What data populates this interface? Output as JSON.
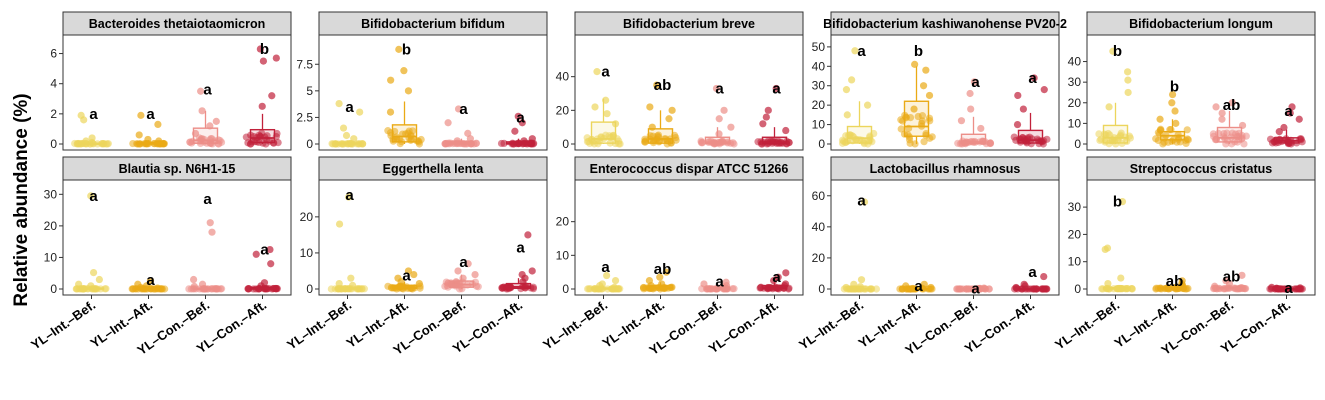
{
  "y_axis_label": "Relative abundance (%)",
  "groups": [
    "YL–Int.–Bef.",
    "YL–Int.–Aft.",
    "YL–Con.–Bef.",
    "YL–Con.–Aft."
  ],
  "group_colors": [
    "#ecd55c",
    "#eaaa16",
    "#ec8e88",
    "#c1213b"
  ],
  "chart_data": [
    {
      "type": "box-jitter",
      "title": "Bacteroides thetaiotaomicron",
      "ylim": [
        0,
        6.7
      ],
      "yticks": [
        0,
        2,
        4,
        6
      ],
      "letters": [
        "a",
        "a",
        "a",
        "b"
      ],
      "label_y": [
        2.0,
        2.0,
        3.6,
        6.3
      ],
      "box": [
        [
          0,
          0,
          0.02,
          0.05,
          0.1
        ],
        [
          0,
          0,
          0.02,
          0.1,
          0.25
        ],
        [
          0,
          0.05,
          0.25,
          1.05,
          2.2
        ],
        [
          0,
          0.1,
          0.4,
          0.95,
          2.0
        ]
      ],
      "points": [
        [
          1.9,
          1.6,
          0.4,
          0.2,
          0.1
        ],
        [
          1.9,
          1.3,
          0.6,
          0.3,
          0.2
        ],
        [
          3.5,
          2.2,
          1.5,
          1.2,
          0.7
        ],
        [
          6.3,
          5.7,
          5.5,
          3.2,
          2.5
        ]
      ]
    },
    {
      "type": "box-jitter",
      "title": "Bifidobacterium bifidum",
      "ylim": [
        0,
        9.5
      ],
      "yticks": [
        0,
        2.5,
        5.0,
        7.5
      ],
      "letters": [
        "a",
        "b",
        "a",
        "a"
      ],
      "label_y": [
        3.5,
        8.9,
        3.3,
        2.5
      ],
      "box": [
        [
          0,
          0,
          0.02,
          0.1,
          0.3
        ],
        [
          0,
          0.2,
          0.7,
          1.8,
          4.0
        ],
        [
          0,
          0,
          0.05,
          0.2,
          0.5
        ],
        [
          0,
          0,
          0.05,
          0.2,
          0.5
        ]
      ],
      "points": [
        [
          3.8,
          3.0,
          1.5,
          0.8,
          0.5
        ],
        [
          8.9,
          6.9,
          6.0,
          5.0,
          3.0
        ],
        [
          3.3,
          2.0,
          1.0,
          0.5,
          0.3
        ],
        [
          2.6,
          2.0,
          1.2,
          0.5,
          0.3
        ]
      ]
    },
    {
      "type": "box-jitter",
      "title": "Bifidobacterium breve",
      "ylim": [
        0,
        60
      ],
      "yticks": [
        0,
        20,
        40
      ],
      "letters": [
        "a",
        "ab",
        "a",
        "a"
      ],
      "label_y": [
        43,
        35,
        33,
        33
      ],
      "box": [
        [
          0,
          0.5,
          3,
          13,
          27
        ],
        [
          0,
          0.5,
          3,
          9,
          20
        ],
        [
          0,
          0.2,
          1,
          4,
          10
        ],
        [
          0,
          0.2,
          1,
          4,
          10
        ]
      ],
      "points": [
        [
          43,
          26,
          22,
          18,
          12
        ],
        [
          35,
          22,
          20,
          15,
          10
        ],
        [
          33,
          20,
          15,
          10,
          6
        ],
        [
          33,
          20,
          16,
          12,
          8
        ]
      ]
    },
    {
      "type": "box-jitter",
      "title": "Bifidobacterium kashiwanohense PV20-2",
      "ylim": [
        0,
        52
      ],
      "yticks": [
        0,
        10,
        20,
        30,
        40,
        50
      ],
      "letters": [
        "a",
        "b",
        "a",
        "a"
      ],
      "label_y": [
        48,
        48,
        32,
        34
      ],
      "box": [
        [
          0,
          0.5,
          3,
          9,
          22
        ],
        [
          0,
          4,
          9,
          22,
          40
        ],
        [
          0,
          0.3,
          1,
          5,
          14
        ],
        [
          0,
          0.5,
          2,
          7,
          16
        ]
      ],
      "points": [
        [
          48,
          33,
          28,
          20,
          15
        ],
        [
          41,
          38,
          30,
          25,
          18
        ],
        [
          32,
          26,
          18,
          12,
          8
        ],
        [
          34,
          28,
          25,
          18,
          10
        ]
      ]
    },
    {
      "type": "box-jitter",
      "title": "Bifidobacterium longum",
      "ylim": [
        0,
        49
      ],
      "yticks": [
        0,
        10,
        20,
        30,
        40
      ],
      "letters": [
        "b",
        "b",
        "ab",
        "a"
      ],
      "label_y": [
        45,
        28,
        19,
        16
      ],
      "box": [
        [
          0,
          0.5,
          3,
          9,
          20
        ],
        [
          0,
          2,
          4,
          6,
          12
        ],
        [
          0,
          1,
          3,
          8,
          16
        ],
        [
          0,
          0.5,
          1.5,
          3,
          7
        ]
      ],
      "points": [
        [
          45,
          35,
          31,
          25,
          18
        ],
        [
          24,
          20,
          16,
          12,
          10
        ],
        [
          20,
          18,
          15,
          12,
          9
        ],
        [
          18,
          15,
          12,
          8,
          6
        ]
      ]
    },
    {
      "type": "box-jitter",
      "title": "Blautia sp. N6H1-15",
      "ylim": [
        0,
        32
      ],
      "yticks": [
        0,
        10,
        20,
        30
      ],
      "letters": [
        "a",
        "a",
        "a",
        "a"
      ],
      "label_y": [
        29.5,
        2.8,
        28.5,
        12.5
      ],
      "box": [
        [
          0,
          0,
          0.05,
          0.3,
          0.8
        ],
        [
          0,
          0,
          0.05,
          0.2,
          0.5
        ],
        [
          0,
          0,
          0.05,
          0.2,
          0.5
        ],
        [
          0,
          0,
          0.1,
          0.5,
          1.2
        ]
      ],
      "points": [
        [
          29.5,
          5.2,
          3.0,
          1.5,
          1.0
        ],
        [
          2.6,
          1.5,
          1.0,
          0.5,
          0.3
        ],
        [
          21,
          18,
          3,
          1.5,
          0.8
        ],
        [
          12.5,
          11,
          8,
          2,
          1
        ]
      ]
    },
    {
      "type": "box-jitter",
      "title": "Eggerthella lenta",
      "ylim": [
        0,
        28
      ],
      "yticks": [
        0,
        10,
        20
      ],
      "letters": [
        "a",
        "a",
        "a",
        "a"
      ],
      "label_y": [
        26,
        3.8,
        7.5,
        11.5
      ],
      "box": [
        [
          0,
          0,
          0.05,
          0.3,
          0.8
        ],
        [
          0,
          0.2,
          0.5,
          1.0,
          2.0
        ],
        [
          0,
          0.5,
          1.2,
          2.2,
          4.0
        ],
        [
          0,
          0.2,
          0.6,
          1.5,
          3.0
        ]
      ],
      "points": [
        [
          25.5,
          18,
          3,
          1.5,
          1
        ],
        [
          5,
          4,
          3,
          2,
          1.5
        ],
        [
          7,
          5,
          4,
          3,
          2
        ],
        [
          15,
          5,
          4,
          3,
          2
        ]
      ]
    },
    {
      "type": "box-jitter",
      "title": "Enterococcus dispar ATCC 51266",
      "ylim": [
        0,
        30
      ],
      "yticks": [
        0,
        10,
        20
      ],
      "letters": [
        "a",
        "ab",
        "a",
        "a"
      ],
      "label_y": [
        6.5,
        6.0,
        2.2,
        3.5
      ],
      "box": [
        [
          0,
          0,
          0.05,
          0.3,
          0.8
        ],
        [
          0,
          0.1,
          0.3,
          1.0,
          2.0
        ],
        [
          0,
          0,
          0.05,
          0.3,
          0.8
        ],
        [
          0,
          0.1,
          0.3,
          1.0,
          2.0
        ]
      ],
      "points": [
        [
          4,
          2.5,
          1.5,
          1,
          0.5
        ],
        [
          5,
          3.5,
          2.5,
          1.5,
          1
        ],
        [
          2,
          1.5,
          1,
          0.5,
          0.3
        ],
        [
          4.8,
          3.5,
          2.5,
          1.5,
          1
        ]
      ]
    },
    {
      "type": "box-jitter",
      "title": "Lactobacillus rhamnosus",
      "ylim": [
        0,
        65
      ],
      "yticks": [
        0,
        20,
        40,
        60
      ],
      "letters": [
        "a",
        "a",
        "a",
        "a"
      ],
      "label_y": [
        57,
        2.0,
        0.3,
        11
      ],
      "box": [
        [
          0,
          0,
          0.02,
          0.1,
          0.3
        ],
        [
          0,
          0,
          0.02,
          0.1,
          0.3
        ],
        [
          0,
          0,
          0.02,
          0.05,
          0.1
        ],
        [
          0,
          0,
          0.02,
          0.1,
          0.3
        ]
      ],
      "points": [
        [
          56,
          6,
          3,
          1.5,
          1
        ],
        [
          3,
          2,
          1,
          0.5,
          0.3
        ],
        [
          0.6,
          0.4,
          0.3,
          0.2,
          0.1
        ],
        [
          8,
          3,
          2,
          1,
          0.5
        ]
      ]
    },
    {
      "type": "box-jitter",
      "title": "Streptococcus cristatus",
      "ylim": [
        0,
        37
      ],
      "yticks": [
        0,
        10,
        20,
        30
      ],
      "letters": [
        "b",
        "ab",
        "ab",
        "a"
      ],
      "label_y": [
        32,
        3.0,
        4.5,
        0.3
      ],
      "box": [
        [
          0,
          0,
          0.1,
          0.5,
          1.2
        ],
        [
          0,
          0.05,
          0.2,
          0.6,
          1.2
        ],
        [
          0,
          0.05,
          0.2,
          0.6,
          1.2
        ],
        [
          0,
          0,
          0.02,
          0.05,
          0.1
        ]
      ],
      "points": [
        [
          32,
          15,
          14.5,
          4,
          2
        ],
        [
          3,
          2,
          1.5,
          1,
          0.5
        ],
        [
          5,
          3,
          2,
          1,
          0.5
        ],
        [
          0.6,
          0.4,
          0.3,
          0.2,
          0.1
        ]
      ]
    }
  ]
}
